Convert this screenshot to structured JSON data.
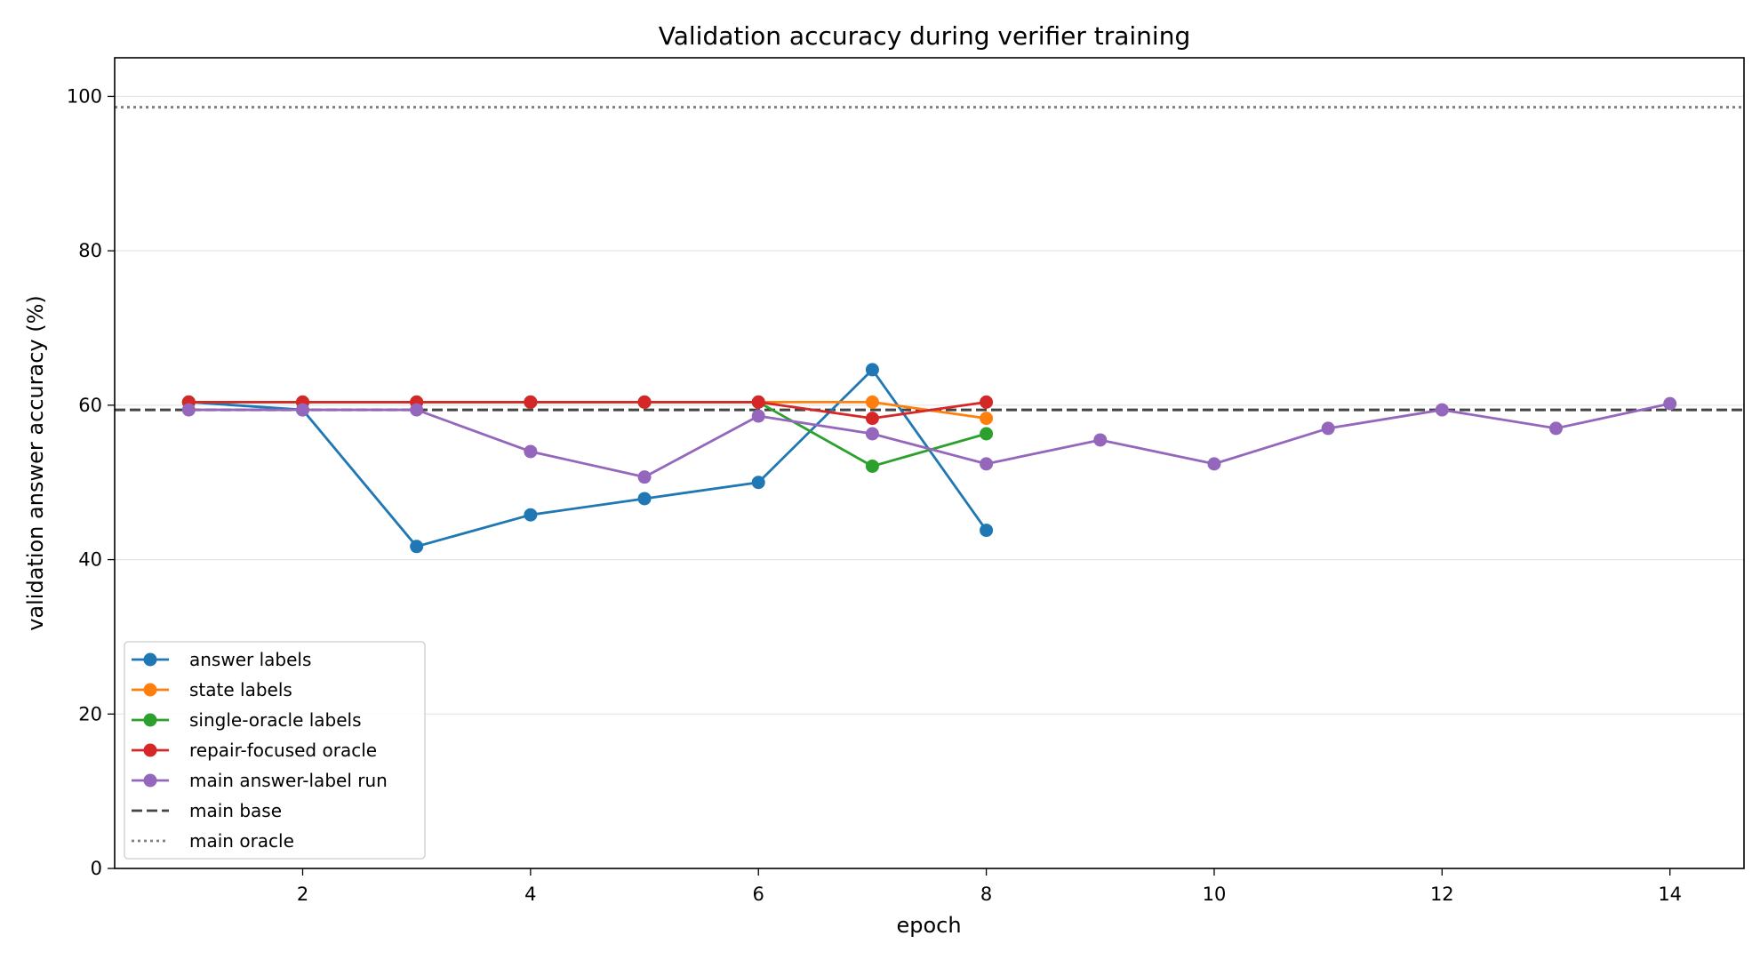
{
  "chart_data": {
    "type": "line",
    "title": "Validation accuracy during verifier training",
    "xlabel": "epoch",
    "ylabel": "validation answer accuracy (%)",
    "xlim": [
      0.35,
      14.65
    ],
    "ylim": [
      0,
      105
    ],
    "xticks": [
      2,
      4,
      6,
      8,
      10,
      12,
      14
    ],
    "yticks": [
      0,
      20,
      40,
      60,
      80,
      100
    ],
    "grid": "horizontal",
    "legend_position": "lower-left",
    "series": [
      {
        "name": "answer labels",
        "color": "#1f77b4",
        "x": [
          1,
          2,
          3,
          4,
          5,
          6,
          7,
          8
        ],
        "y": [
          60.4,
          59.4,
          41.7,
          45.8,
          47.9,
          50.0,
          64.6,
          43.8
        ]
      },
      {
        "name": "state labels",
        "color": "#ff7f0e",
        "x": [
          1,
          2,
          3,
          4,
          5,
          6,
          7,
          8
        ],
        "y": [
          60.4,
          60.4,
          60.4,
          60.4,
          60.4,
          60.4,
          60.4,
          58.3
        ]
      },
      {
        "name": "single-oracle labels",
        "color": "#2ca02c",
        "x": [
          1,
          2,
          3,
          4,
          5,
          6,
          7,
          8
        ],
        "y": [
          60.4,
          60.4,
          60.4,
          60.4,
          60.4,
          60.4,
          52.1,
          56.3
        ]
      },
      {
        "name": "repair-focused oracle",
        "color": "#d62728",
        "x": [
          1,
          2,
          3,
          4,
          5,
          6,
          7,
          8
        ],
        "y": [
          60.4,
          60.4,
          60.4,
          60.4,
          60.4,
          60.4,
          58.3,
          60.4
        ]
      },
      {
        "name": "main answer-label run",
        "color": "#9467bd",
        "x": [
          1,
          2,
          3,
          4,
          5,
          6,
          7,
          8,
          9,
          10,
          11,
          12,
          13,
          14
        ],
        "y": [
          59.4,
          59.4,
          59.4,
          54.0,
          50.7,
          58.6,
          56.3,
          52.4,
          55.5,
          52.4,
          57.0,
          59.4,
          57.0,
          60.2
        ]
      }
    ],
    "reference_lines": [
      {
        "name": "main base",
        "y": 59.4,
        "color": "#444444",
        "style": "dashed"
      },
      {
        "name": "main oracle",
        "y": 98.6,
        "color": "#808080",
        "style": "dotted"
      }
    ]
  }
}
